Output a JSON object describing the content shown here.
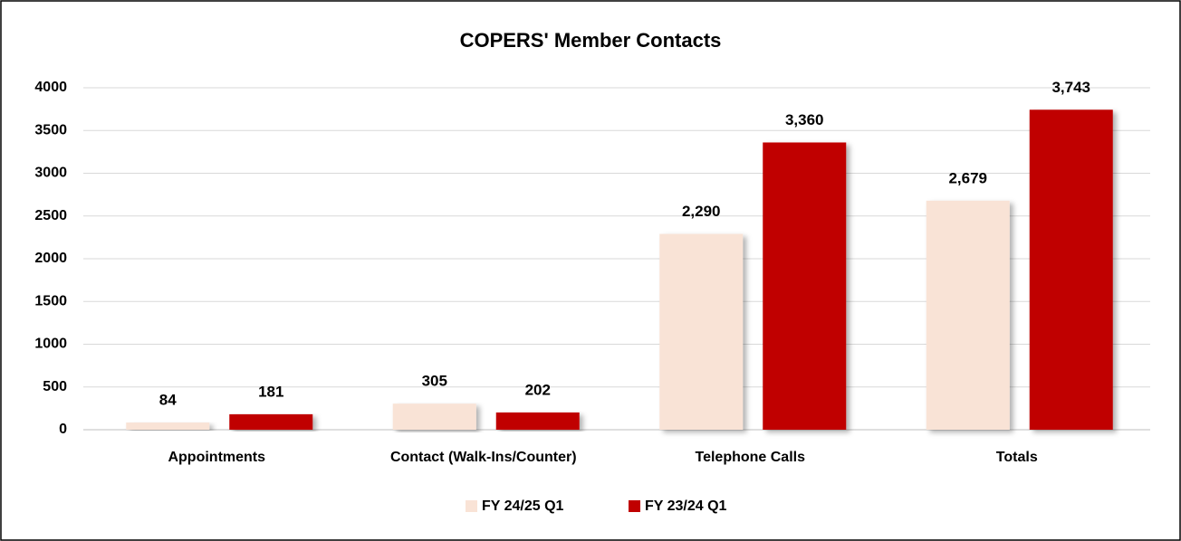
{
  "chart_data": {
    "type": "bar",
    "title": "COPERS' Member Contacts",
    "categories": [
      "Appointments",
      "Contact (Walk-Ins/Counter)",
      "Telephone Calls",
      "Totals"
    ],
    "series": [
      {
        "name": "FY 24/25 Q1",
        "color": "#f9e3d6",
        "values": [
          84,
          305,
          2290,
          2679
        ],
        "value_labels": [
          "84",
          "305",
          "2,290",
          "2,679"
        ]
      },
      {
        "name": "FY 23/24 Q1",
        "color": "#c00000",
        "values": [
          181,
          202,
          3360,
          3743
        ],
        "value_labels": [
          "181",
          "202",
          "3,360",
          "3,743"
        ]
      }
    ],
    "ylim": [
      0,
      4000
    ],
    "yticks": [
      0,
      500,
      1000,
      1500,
      2000,
      2500,
      3000,
      3500,
      4000
    ],
    "grid": true,
    "legend": "bottom"
  }
}
